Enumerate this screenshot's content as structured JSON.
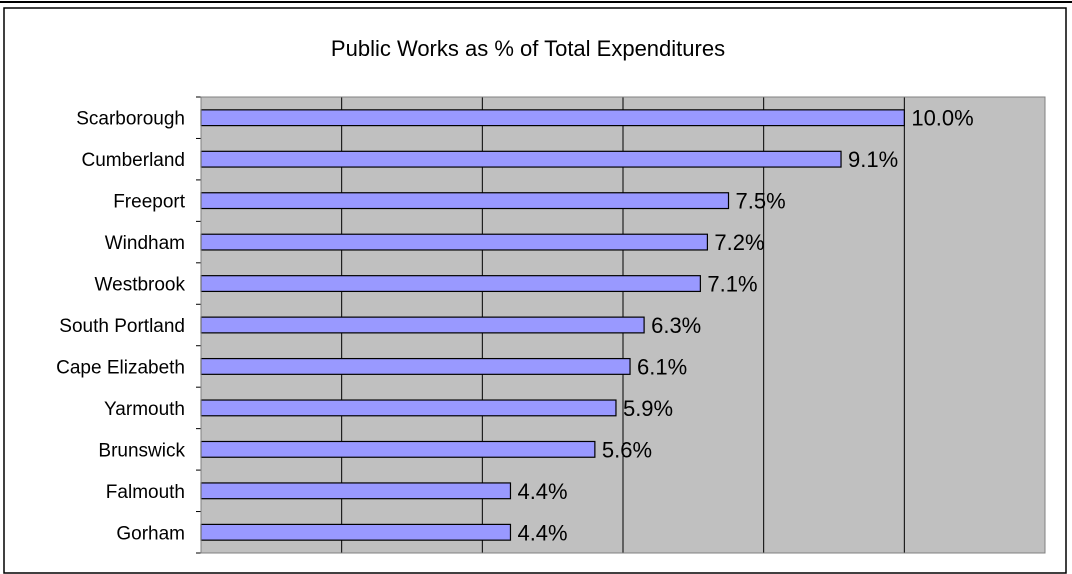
{
  "chart_data": {
    "type": "bar",
    "orientation": "horizontal",
    "title": "Public Works as % of Total Expenditures",
    "xlabel": "",
    "ylabel": "",
    "xlim": [
      0,
      0.12
    ],
    "grid": true,
    "legend": "none",
    "categories": [
      "Scarborough",
      "Cumberland",
      "Freeport",
      "Windham",
      "Westbrook",
      "South Portland",
      "Cape Elizabeth",
      "Yarmouth",
      "Brunswick",
      "Falmouth",
      "Gorham"
    ],
    "values": [
      0.1,
      0.091,
      0.075,
      0.072,
      0.071,
      0.063,
      0.061,
      0.059,
      0.056,
      0.044,
      0.044
    ],
    "value_labels": [
      "10.0%",
      "9.1%",
      "7.5%",
      "7.2%",
      "7.1%",
      "6.3%",
      "6.1%",
      "5.9%",
      "5.6%",
      "4.4%",
      "4.4%"
    ],
    "colors": {
      "bar_fill": "#9999ff",
      "plot_area": "#c0c0c0",
      "gridline": "#000000",
      "border": "#000000"
    }
  }
}
